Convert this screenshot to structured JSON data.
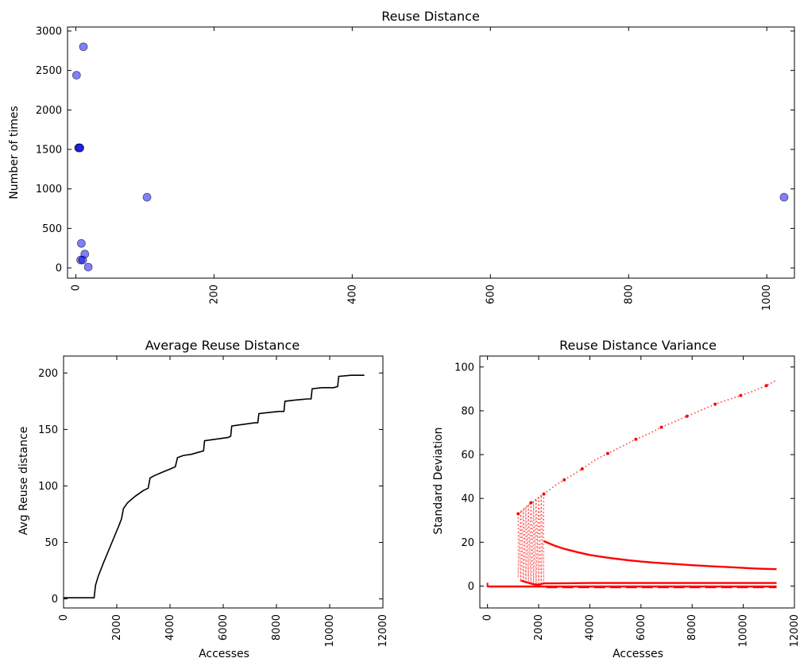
{
  "chart_data": [
    {
      "id": "reuse-distance",
      "type": "scatter",
      "title": "Reuse Distance",
      "xlabel": "",
      "ylabel": "Number of times",
      "xlim": [
        -12,
        1040
      ],
      "ylim": [
        -130,
        3050
      ],
      "xticks": [
        0,
        200,
        400,
        600,
        800,
        1000
      ],
      "yticks": [
        0,
        500,
        1000,
        1500,
        2000,
        2500,
        3000
      ],
      "grid": false,
      "color": "#0000ff",
      "points": [
        {
          "x": 1,
          "y": 2440
        },
        {
          "x": 4,
          "y": 1520
        },
        {
          "x": 5,
          "y": 1520
        },
        {
          "x": 6,
          "y": 1520
        },
        {
          "x": 8,
          "y": 310
        },
        {
          "x": 7,
          "y": 100
        },
        {
          "x": 10,
          "y": 100
        },
        {
          "x": 11,
          "y": 2800
        },
        {
          "x": 13,
          "y": 175
        },
        {
          "x": 18,
          "y": 10
        },
        {
          "x": 103,
          "y": 895
        },
        {
          "x": 1025,
          "y": 895
        }
      ]
    },
    {
      "id": "average-reuse-distance",
      "type": "line",
      "title": "Average Reuse Distance",
      "xlabel": "Accesses",
      "ylabel": "Avg Reuse distance",
      "xlim": [
        0,
        12000
      ],
      "ylim": [
        -8,
        215
      ],
      "xticks": [
        0,
        2000,
        4000,
        6000,
        8000,
        10000,
        12000
      ],
      "yticks": [
        0,
        50,
        100,
        150,
        200
      ],
      "grid": false,
      "color": "#000000",
      "x": [
        0,
        1150,
        1200,
        1300,
        1500,
        1800,
        2100,
        2180,
        2250,
        2400,
        2700,
        3000,
        3180,
        3250,
        3400,
        3700,
        4000,
        4200,
        4280,
        4500,
        4800,
        5100,
        5260,
        5300,
        5600,
        5900,
        6200,
        6280,
        6320,
        6600,
        6900,
        7200,
        7300,
        7340,
        7700,
        8100,
        8280,
        8320,
        8700,
        9150,
        9300,
        9340,
        9700,
        10150,
        10300,
        10340,
        10800,
        11300
      ],
      "y": [
        1,
        1,
        12,
        20,
        32,
        49,
        66,
        71,
        80,
        85,
        91,
        96,
        98,
        107,
        109,
        112,
        115,
        117,
        125,
        127,
        128,
        130,
        131,
        140,
        141,
        142,
        143,
        144,
        153,
        154,
        155,
        156,
        156,
        164,
        165,
        166,
        166,
        175,
        176,
        177,
        177,
        186,
        187,
        187,
        188,
        197,
        198,
        198
      ]
    },
    {
      "id": "reuse-distance-variance",
      "type": "line",
      "title": "Reuse Distance Variance",
      "xlabel": "Accesses",
      "ylabel": "Standard Deviation",
      "xlim": [
        -300,
        12000
      ],
      "ylim": [
        -10,
        105
      ],
      "xticks": [
        0,
        2000,
        4000,
        6000,
        8000,
        10000,
        12000
      ],
      "yticks": [
        0,
        20,
        40,
        60,
        80,
        100
      ],
      "grid": false,
      "color": "#ff0000",
      "series": [
        {
          "style": "dotted",
          "x": [
            1200,
            1400,
            1700,
            2000,
            2200,
            2600,
            3000,
            3300,
            3700,
            4200,
            4700,
            5300,
            5800,
            6300,
            6800,
            7300,
            7800,
            8400,
            8900,
            9400,
            9900,
            10400,
            10900,
            11300
          ],
          "y": [
            33,
            35,
            38,
            40.5,
            42,
            45.5,
            48.5,
            50.5,
            53.5,
            57.5,
            60.5,
            64,
            67,
            69.5,
            72.5,
            75,
            77.5,
            80.5,
            83,
            85,
            87,
            89,
            91.5,
            94
          ]
        },
        {
          "style": "solid",
          "x": [
            2200,
            2600,
            3000,
            3500,
            4000,
            4500,
            5000,
            5500,
            6000,
            6500,
            7000,
            7500,
            8000,
            8500,
            9000,
            9500,
            10000,
            10500,
            11000,
            11300
          ],
          "y": [
            20.5,
            18.5,
            17,
            15.5,
            14.2,
            13.3,
            12.5,
            11.8,
            11.2,
            10.7,
            10.3,
            9.9,
            9.5,
            9.2,
            8.9,
            8.6,
            8.3,
            8,
            7.8,
            7.7
          ]
        },
        {
          "style": "solid",
          "x": [
            1300,
            1500,
            1800,
            2000,
            2200,
            3000,
            4000,
            5000,
            6000,
            7000,
            8000,
            9000,
            10000,
            11300
          ],
          "y": [
            2.5,
            1.8,
            0.8,
            0.6,
            1.2,
            1.3,
            1.4,
            1.4,
            1.4,
            1.4,
            1.4,
            1.4,
            1.4,
            1.4
          ]
        },
        {
          "style": "solid",
          "x": [
            0,
            2000,
            4000,
            6000,
            8000,
            10000,
            11300
          ],
          "y": [
            -0.2,
            -0.2,
            -0.2,
            -0.2,
            -0.2,
            -0.2,
            -0.2
          ]
        },
        {
          "style": "dashed",
          "x": [
            2300,
            4000,
            6000,
            8000,
            10000,
            11300
          ],
          "y": [
            -0.6,
            -0.6,
            -0.6,
            -0.6,
            -0.6,
            -0.6
          ]
        },
        {
          "style": "dotted-band",
          "x": [
            1200,
            1300,
            1400,
            1500,
            1600,
            1700,
            1800,
            1900,
            2000,
            2100,
            2200
          ],
          "y_low": [
            4,
            2.5,
            2,
            1.7,
            1.4,
            1.2,
            1,
            0.9,
            0.8,
            0.7,
            1
          ],
          "y_high": [
            33,
            34,
            35,
            36,
            37,
            38,
            38.5,
            39.5,
            40.5,
            41,
            42
          ]
        }
      ]
    }
  ]
}
